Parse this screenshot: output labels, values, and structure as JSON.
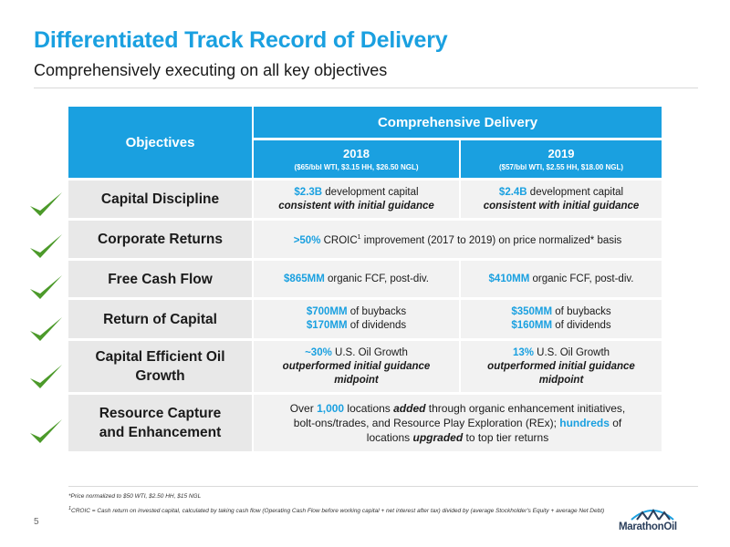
{
  "header": {
    "title": "Differentiated Track Record of Delivery",
    "subtitle": "Comprehensively executing on all key objectives"
  },
  "table": {
    "objectives_header": "Objectives",
    "delivery_header": "Comprehensive Delivery",
    "years": [
      {
        "year": "2018",
        "assumptions": "($65/bbl WTI, $3.15 HH, $26.50 NGL)"
      },
      {
        "year": "2019",
        "assumptions": "($57/bbl WTI, $2.55 HH, $18.00 NGL)"
      }
    ],
    "rows": [
      {
        "objective": "Capital Discipline",
        "y2018": {
          "value": "$2.3B",
          "text": " development capital",
          "line2": "consistent with initial guidance"
        },
        "y2019": {
          "value": "$2.4B",
          "text": " development capital",
          "line2": "consistent with initial guidance"
        }
      },
      {
        "objective": "Corporate Returns",
        "merged": {
          "value": ">50%",
          "text_a": " CROIC",
          "sup": "1",
          "text_b": " improvement (2017 to 2019) on price normalized* basis"
        }
      },
      {
        "objective": "Free Cash Flow",
        "y2018": {
          "value": "$865MM",
          "text": " organic FCF, post-div."
        },
        "y2019": {
          "value": "$410MM",
          "text": " organic FCF, post-div."
        }
      },
      {
        "objective": "Return of Capital",
        "y2018": {
          "value1": "$700MM",
          "text1": " of buybacks",
          "value2": "$170MM",
          "text2": " of dividends"
        },
        "y2019": {
          "value1": "$350MM",
          "text1": " of buybacks",
          "value2": "$160MM",
          "text2": " of dividends"
        }
      },
      {
        "objective_line1": "Capital Efficient Oil",
        "objective_line2": "Growth",
        "y2018": {
          "value": "~30%",
          "text": " U.S. Oil Growth",
          "line2": "outperformed initial guidance",
          "line3": "midpoint"
        },
        "y2019": {
          "value": "13%",
          "text": " U.S. Oil Growth",
          "line2": "outperformed initial guidance",
          "line3": "midpoint"
        }
      },
      {
        "objective_line1": "Resource Capture",
        "objective_line2": "and Enhancement",
        "merged": {
          "t1": "Over ",
          "v1": "1,000",
          "t2": " locations ",
          "b1": "added",
          "t3": " through organic enhancement initiatives,",
          "t4": "bolt-ons/trades, and Resource Play Exploration (REx); ",
          "v2": "hundreds",
          "t5": " of",
          "t6": "locations ",
          "b2": "upgraded",
          "t7": " to top tier returns"
        }
      }
    ]
  },
  "footnotes": {
    "note1": "*Price normalized to $50 WTI, $2.50 HH, $15 NGL",
    "note2_sup": "1",
    "note2": "CROIC = Cash return on invested capital, calculated by taking cash flow (Operating Cash Flow before working capital + net interest after tax) divided by (average Stockholder's Equity + average Net Debt)"
  },
  "page_number": "5",
  "logo_text": "MarathonOil",
  "colors": {
    "accent": "#1aa0e0",
    "check": "#4c9a2a",
    "objective_bg": "#e8e8e8",
    "cell_bg": "#f2f2f2"
  },
  "icons": {
    "row_status": "checkmark-icon"
  }
}
